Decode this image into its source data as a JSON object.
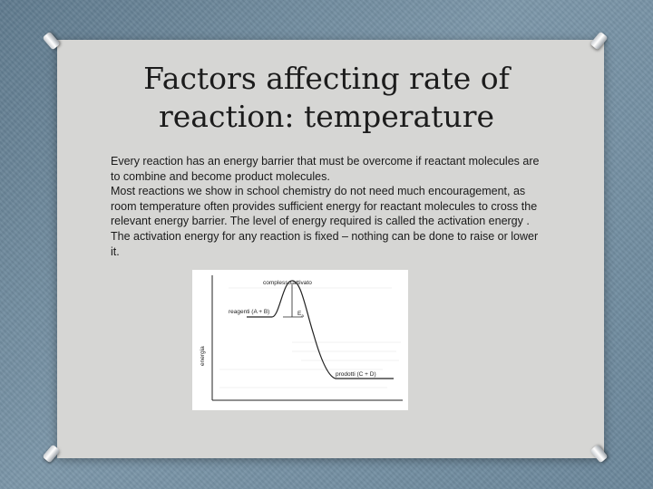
{
  "slide": {
    "title": "Factors affecting rate of reaction: temperature",
    "paragraphs": [
      "Every reaction has an energy barrier that must be overcome if reactant molecules are to combine and become product molecules.",
      "Most reactions we show in school chemistry do not need much encouragement, as room temperature often provides sufficient energy for reactant molecules to cross the relevant energy barrier. The level of energy required is called the activation energy . The activation energy for any reaction is fixed – nothing can be done to raise or lower it."
    ]
  },
  "diagram": {
    "peak_label": "complesso attivato",
    "reactants_label": "reagenti (A + B)",
    "products_label": "prodotti (C + D)",
    "energy_label": "E",
    "energy_subscript": "a",
    "y_axis_label": "energia"
  },
  "colors": {
    "background": "#6f8a9e",
    "card": "#d6d6d4",
    "text": "#1a1a1a"
  }
}
